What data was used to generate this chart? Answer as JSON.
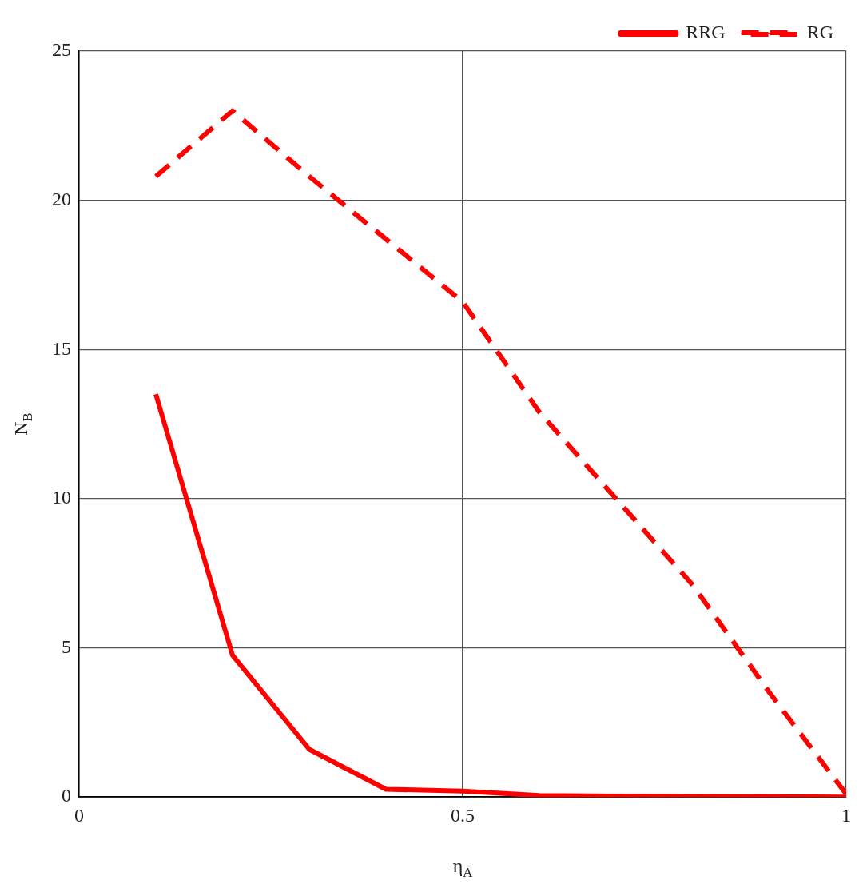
{
  "chart_data": {
    "type": "line",
    "xlabel": "η$_{A}$",
    "ylabel": "N$_{B}$",
    "x": [
      0.1,
      0.2,
      0.3,
      0.4,
      0.5,
      0.6,
      0.7,
      0.8,
      0.9,
      1.0
    ],
    "series": [
      {
        "name": "RRG",
        "color": "#ff0000",
        "line_style": "solid",
        "values": [
          13.5,
          4.75,
          1.6,
          0.26,
          0.2,
          0.05,
          0.03,
          0.02,
          0.01,
          0
        ]
      },
      {
        "name": "RG",
        "color": "#ff0000",
        "line_style": "dashed",
        "values": [
          20.8,
          23.0,
          20.8,
          18.7,
          16.6,
          12.9,
          10.0,
          7.1,
          3.5,
          0.1
        ]
      }
    ],
    "xlim": [
      0,
      1
    ],
    "xticks": [
      0,
      0.5,
      1
    ],
    "ylim": [
      0,
      25
    ],
    "yticks": [
      0,
      5,
      10,
      15,
      20,
      25
    ],
    "grid": true,
    "legend": "top right",
    "marker": "none"
  }
}
